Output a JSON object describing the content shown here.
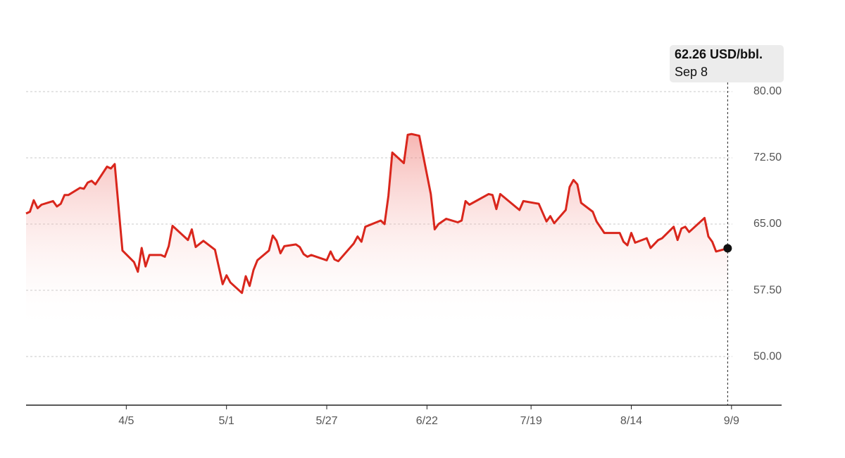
{
  "chart_data": {
    "type": "line",
    "color": "#d9261c",
    "x": [
      "03-10",
      "03-11",
      "03-12",
      "03-13",
      "03-14",
      "03-17",
      "03-18",
      "03-19",
      "03-20",
      "03-21",
      "03-24",
      "03-25",
      "03-26",
      "03-27",
      "03-28",
      "03-31",
      "04-01",
      "04-02",
      "04-04",
      "04-07",
      "04-08",
      "04-09",
      "04-10",
      "04-11",
      "04-14",
      "04-15",
      "04-16",
      "04-17",
      "04-21",
      "04-22",
      "04-23",
      "04-25",
      "04-28",
      "04-30",
      "05-01",
      "05-02",
      "05-05",
      "05-06",
      "05-07",
      "05-08",
      "05-09",
      "05-12",
      "05-13",
      "05-14",
      "05-15",
      "05-16",
      "05-19",
      "05-20",
      "05-21",
      "05-22",
      "05-23",
      "05-27",
      "05-28",
      "05-29",
      "05-30",
      "06-03",
      "06-04",
      "06-05",
      "06-06",
      "06-10",
      "06-11",
      "06-12",
      "06-13",
      "06-16",
      "06-17",
      "06-18",
      "06-20",
      "06-23",
      "06-24",
      "06-25",
      "06-27",
      "06-30",
      "07-01",
      "07-02",
      "07-03",
      "07-08",
      "07-09",
      "07-10",
      "07-11",
      "07-16",
      "07-17",
      "07-21",
      "07-23",
      "07-24",
      "07-25",
      "07-28",
      "07-29",
      "07-30",
      "07-31",
      "08-01",
      "08-04",
      "08-05",
      "08-07",
      "08-11",
      "08-12",
      "08-13",
      "08-14",
      "08-15",
      "08-18",
      "08-19",
      "08-21",
      "08-22",
      "08-25",
      "08-26",
      "08-27",
      "08-28",
      "08-29",
      "09-02",
      "09-03",
      "09-04",
      "09-05",
      "09-08"
    ],
    "values": [
      66.2,
      66.4,
      67.7,
      66.8,
      67.2,
      67.6,
      67.0,
      67.3,
      68.3,
      68.3,
      69.1,
      69.0,
      69.7,
      69.9,
      69.5,
      71.5,
      71.3,
      71.8,
      62.0,
      60.7,
      59.6,
      62.3,
      60.2,
      61.5,
      61.5,
      61.3,
      62.5,
      64.8,
      63.2,
      64.4,
      62.4,
      63.1,
      62.1,
      58.2,
      59.2,
      58.4,
      57.2,
      59.1,
      58.0,
      59.8,
      60.9,
      62.0,
      63.7,
      63.1,
      61.7,
      62.5,
      62.7,
      62.4,
      61.6,
      61.3,
      61.5,
      60.9,
      61.9,
      61.0,
      60.8,
      62.8,
      63.6,
      63.0,
      64.7,
      65.4,
      65.0,
      68.2,
      73.1,
      71.9,
      75.1,
      75.2,
      75.0,
      68.4,
      64.4,
      65.0,
      65.6,
      65.2,
      65.4,
      67.6,
      67.2,
      68.4,
      68.3,
      66.7,
      68.4,
      66.6,
      67.6,
      67.3,
      65.3,
      65.9,
      65.1,
      66.6,
      69.2,
      70.0,
      69.5,
      67.4,
      66.4,
      65.3,
      64.0,
      64.0,
      63.0,
      62.6,
      64.0,
      62.9,
      63.4,
      62.3,
      63.2,
      63.4,
      64.7,
      63.2,
      64.5,
      64.7,
      64.1,
      65.7,
      63.6,
      63.0,
      61.9,
      62.26
    ],
    "xlim": [
      "03-10",
      "09-22"
    ],
    "xticks": [
      {
        "value": "04-05",
        "label": "4/5"
      },
      {
        "value": "05-01",
        "label": "5/1"
      },
      {
        "value": "05-27",
        "label": "5/27"
      },
      {
        "value": "06-22",
        "label": "6/22"
      },
      {
        "value": "07-19",
        "label": "7/19"
      },
      {
        "value": "08-14",
        "label": "8/14"
      },
      {
        "value": "09-09",
        "label": "9/9"
      }
    ],
    "ylim": [
      44.5,
      80
    ],
    "yticks": [
      {
        "value": 50,
        "label": "50.00"
      },
      {
        "value": 57.5,
        "label": "57.50"
      },
      {
        "value": 65,
        "label": "65.00"
      },
      {
        "value": 72.5,
        "label": "72.50"
      },
      {
        "value": 80,
        "label": "80.00"
      }
    ],
    "grid": true,
    "annotation": {
      "value_label": "62.26 USD/bbl.",
      "date": "Sep 8"
    }
  }
}
